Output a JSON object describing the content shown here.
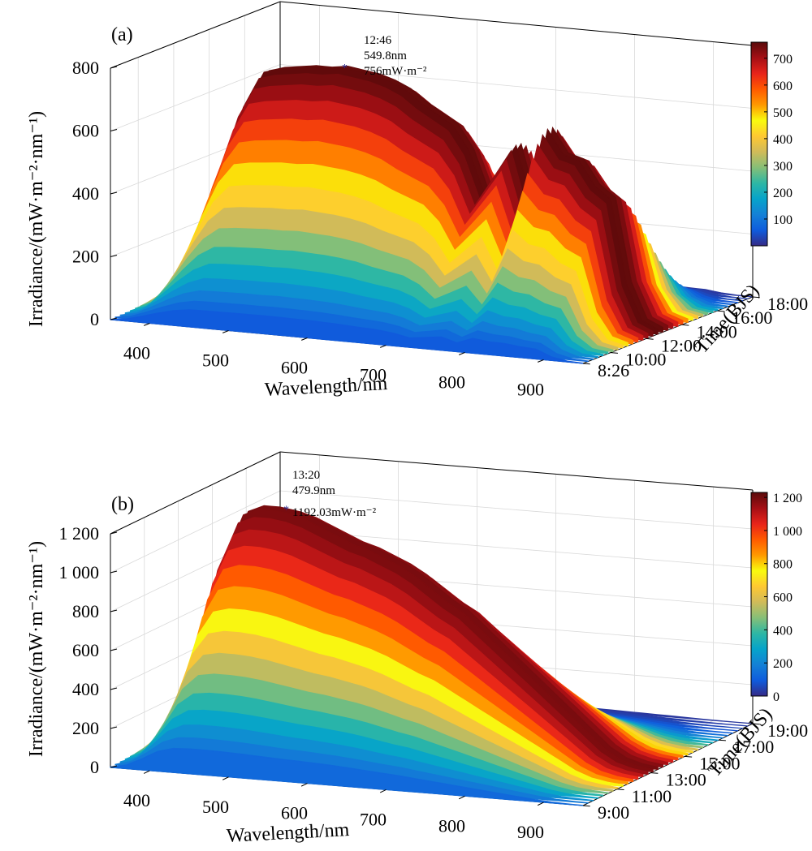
{
  "colors": {
    "colormap": [
      "#352a87",
      "#0f5cdd",
      "#1481d6",
      "#06a4ca",
      "#2eb7a4",
      "#87bf77",
      "#d1bb59",
      "#fec832",
      "#f9fb0e",
      "#ff9900",
      "#ff5a00",
      "#e8231a",
      "#a50f15",
      "#5a0a0a"
    ],
    "marker": "#2b2b8f",
    "grid": "#d9d9d9",
    "axis": "#000000"
  },
  "chart_data": [
    {
      "type": "surface",
      "panel_label": "(a)",
      "xlabel": "Wavelength/nm",
      "ylabel": "Time(BJS)",
      "zlabel": "Irradiance/(mW·m⁻²·nm⁻¹)",
      "x_ticks": [
        "400",
        "500",
        "600",
        "700",
        "800",
        "900"
      ],
      "x_tick_values": [
        400,
        500,
        600,
        700,
        800,
        900
      ],
      "xlim": [
        350,
        950
      ],
      "y_ticks": [
        "8:26",
        "10:00",
        "12:00",
        "14:00",
        "16:00",
        "18:00"
      ],
      "y_tick_hours": [
        8.433,
        10,
        12,
        14,
        16,
        18
      ],
      "ylim_hours": [
        8.433,
        18
      ],
      "z_ticks": [
        "0",
        "200",
        "400",
        "600",
        "800"
      ],
      "z_tick_values": [
        0,
        200,
        400,
        600,
        800
      ],
      "zlim": [
        0,
        800
      ],
      "colorbar_ticks": [
        "100",
        "200",
        "300",
        "400",
        "500",
        "600",
        "700"
      ],
      "colorbar_tick_values": [
        100,
        200,
        300,
        400,
        500,
        600,
        700
      ],
      "colorbar_range": [
        0,
        760
      ],
      "peak": {
        "time": "12:46",
        "wavelength": "549.8nm",
        "value": "756mW·m⁻²",
        "time_hours": 12.767,
        "wavelength_nm": 549.8,
        "value_num": 756
      },
      "peak_time_hours": 12.767,
      "peak_value": 756,
      "diurnal_width_hours": 2.7,
      "spectrum_wavelengths": [
        350,
        370,
        390,
        410,
        430,
        450,
        470,
        490,
        510,
        530,
        550,
        570,
        590,
        610,
        630,
        650,
        670,
        690,
        710,
        730,
        750,
        770,
        790,
        810,
        830,
        850,
        870,
        890,
        910,
        930,
        950
      ],
      "spectrum_relative": [
        0.02,
        0.12,
        0.35,
        0.6,
        0.82,
        0.95,
        0.97,
        0.98,
        0.99,
        0.99,
        1.0,
        0.99,
        0.98,
        0.96,
        0.93,
        0.88,
        0.84,
        0.8,
        0.7,
        0.52,
        0.63,
        0.74,
        0.5,
        0.82,
        0.72,
        0.7,
        0.6,
        0.55,
        0.2,
        0.05,
        0.02
      ]
    },
    {
      "type": "surface",
      "panel_label": "(b)",
      "xlabel": "Wavelength/nm",
      "ylabel": "Time(BJS)",
      "zlabel": "Irradiance/(mW·m⁻²·nm⁻¹)",
      "x_ticks": [
        "400",
        "500",
        "600",
        "700",
        "800",
        "900"
      ],
      "x_tick_values": [
        400,
        500,
        600,
        700,
        800,
        900
      ],
      "xlim": [
        350,
        950
      ],
      "y_ticks": [
        "9:00",
        "11:00",
        "13:00",
        "15:00",
        "17:00",
        "19:00"
      ],
      "y_tick_hours": [
        9,
        11,
        13,
        15,
        17,
        19
      ],
      "ylim_hours": [
        9,
        19
      ],
      "z_ticks": [
        "0",
        "200",
        "400",
        "600",
        "800",
        "1 000",
        "1 200"
      ],
      "z_tick_values": [
        0,
        200,
        400,
        600,
        800,
        1000,
        1200
      ],
      "zlim": [
        0,
        1200
      ],
      "colorbar_ticks": [
        "0",
        "200",
        "400",
        "600",
        "800",
        "1 000",
        "1 200"
      ],
      "colorbar_tick_values": [
        0,
        200,
        400,
        600,
        800,
        1000,
        1200
      ],
      "colorbar_range": [
        0,
        1230
      ],
      "peak": {
        "time": "13:20",
        "wavelength": "479.9nm",
        "value": "1192.03mW·m⁻²",
        "time_hours": 13.333,
        "wavelength_nm": 479.9,
        "value_num": 1192.03
      },
      "peak_time_hours": 13.333,
      "peak_value": 1192.03,
      "diurnal_width_hours": 2.9,
      "spectrum_wavelengths": [
        350,
        370,
        390,
        410,
        430,
        450,
        470,
        490,
        510,
        530,
        550,
        570,
        590,
        610,
        630,
        650,
        670,
        690,
        710,
        730,
        750,
        770,
        790,
        810,
        830,
        850,
        870,
        890,
        910,
        930,
        950
      ],
      "spectrum_relative": [
        0.02,
        0.15,
        0.45,
        0.8,
        0.97,
        1.0,
        1.0,
        0.99,
        0.97,
        0.94,
        0.91,
        0.88,
        0.86,
        0.83,
        0.8,
        0.76,
        0.71,
        0.66,
        0.62,
        0.56,
        0.5,
        0.44,
        0.38,
        0.32,
        0.26,
        0.2,
        0.14,
        0.08,
        0.04,
        0.02,
        0.01
      ]
    }
  ]
}
